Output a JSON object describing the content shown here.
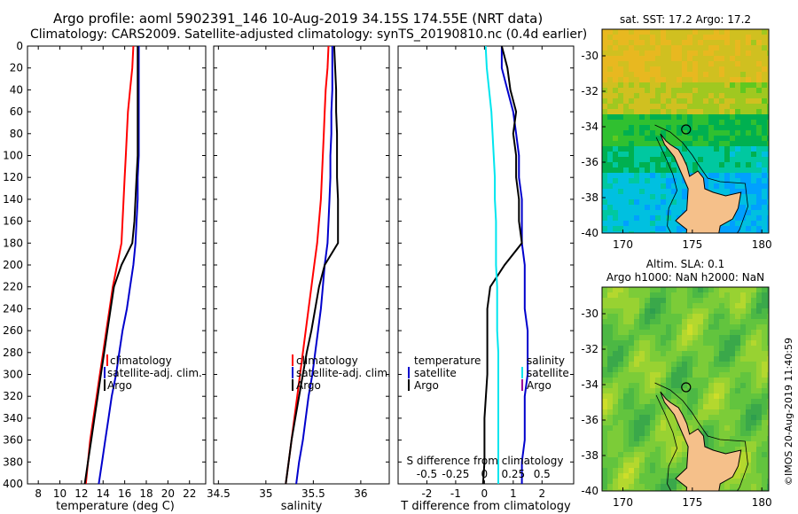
{
  "title_line1": "Argo profile: aoml 5902391_146 10-Aug-2019 34.15S 174.55E (NRT data)",
  "title_line2": "Climatology: CARS2009. Satellite-adjusted climatology: synTS_20190810.nc (0.4d earlier)",
  "credit": "©IMOS 20-Aug-2019 11:40:59",
  "colors": {
    "climatology": "#ff0000",
    "satellite": "#0000cc",
    "argo": "#000000",
    "s_satellite": "#00e5ee",
    "s_argo": "#990099"
  },
  "depth_axis": {
    "ticks": [
      0,
      20,
      40,
      60,
      80,
      100,
      120,
      140,
      160,
      180,
      200,
      220,
      240,
      260,
      280,
      300,
      320,
      340,
      360,
      380,
      400
    ],
    "ylim": [
      0,
      400
    ]
  },
  "chart_data": [
    {
      "id": "temperature",
      "type": "line",
      "xlabel": "temperature (deg C)",
      "xlim": [
        7,
        23.5
      ],
      "ylim": [
        0,
        400
      ],
      "xticks": [
        8,
        10,
        12,
        14,
        16,
        18,
        20,
        22
      ],
      "legend": [
        "climatology",
        "satellite-adj. clim.",
        "Argo"
      ],
      "series": [
        {
          "name": "climatology",
          "color": "#ff0000",
          "depth": [
            0,
            20,
            40,
            60,
            80,
            100,
            120,
            140,
            160,
            180,
            200,
            220,
            240,
            260,
            280,
            300,
            320,
            340,
            360,
            380,
            400
          ],
          "values": [
            16.8,
            16.7,
            16.5,
            16.3,
            16.2,
            16.1,
            16.0,
            15.9,
            15.8,
            15.7,
            15.3,
            14.9,
            14.6,
            14.3,
            14.0,
            13.7,
            13.4,
            13.1,
            12.8,
            12.6,
            12.4
          ]
        },
        {
          "name": "satellite-adj. clim.",
          "color": "#0000cc",
          "depth": [
            0,
            20,
            40,
            60,
            80,
            100,
            120,
            140,
            160,
            180,
            200,
            220,
            240,
            260,
            280,
            300,
            320,
            340,
            360,
            380,
            400
          ],
          "values": [
            17.3,
            17.3,
            17.3,
            17.3,
            17.3,
            17.3,
            17.2,
            17.2,
            17.1,
            17.0,
            16.8,
            16.5,
            16.2,
            15.8,
            15.5,
            15.2,
            14.8,
            14.5,
            14.2,
            13.9,
            13.6
          ]
        },
        {
          "name": "Argo",
          "color": "#000000",
          "depth": [
            0,
            20,
            40,
            60,
            80,
            100,
            120,
            140,
            160,
            180,
            200,
            220,
            240,
            260,
            280,
            300,
            320,
            340,
            360,
            380,
            400
          ],
          "values": [
            17.2,
            17.2,
            17.2,
            17.2,
            17.2,
            17.2,
            17.1,
            17.0,
            16.9,
            16.7,
            15.7,
            15.0,
            14.7,
            14.4,
            14.1,
            13.8,
            13.5,
            13.2,
            12.9,
            12.6,
            12.3
          ]
        }
      ]
    },
    {
      "id": "salinity",
      "type": "line",
      "xlabel": "salinity",
      "xlim": [
        34.45,
        36.3
      ],
      "ylim": [
        0,
        400
      ],
      "xticks": [
        34.5,
        35,
        35.5,
        36
      ],
      "xticklabels": [
        "34.5",
        "35",
        "35.5",
        "36"
      ],
      "legend": [
        "climatology",
        "satellite-adj. clim.",
        "Argo"
      ],
      "series": [
        {
          "name": "climatology",
          "color": "#ff0000",
          "depth": [
            0,
            20,
            40,
            60,
            80,
            100,
            120,
            140,
            160,
            180,
            200,
            220,
            240,
            260,
            280,
            300,
            320,
            340,
            360,
            380,
            400
          ],
          "values": [
            35.66,
            35.65,
            35.63,
            35.62,
            35.61,
            35.6,
            35.59,
            35.58,
            35.56,
            35.54,
            35.51,
            35.48,
            35.45,
            35.42,
            35.39,
            35.36,
            35.33,
            35.3,
            35.27,
            35.24,
            35.21
          ]
        },
        {
          "name": "satellite-adj. clim.",
          "color": "#0000cc",
          "depth": [
            0,
            20,
            40,
            60,
            80,
            100,
            120,
            140,
            160,
            180,
            200,
            220,
            240,
            260,
            280,
            300,
            320,
            340,
            360,
            380,
            400
          ],
          "values": [
            35.7,
            35.7,
            35.7,
            35.69,
            35.69,
            35.68,
            35.68,
            35.67,
            35.66,
            35.65,
            35.62,
            35.6,
            35.58,
            35.55,
            35.52,
            35.49,
            35.45,
            35.42,
            35.39,
            35.35,
            35.32
          ]
        },
        {
          "name": "Argo",
          "color": "#000000",
          "depth": [
            0,
            20,
            40,
            60,
            80,
            100,
            120,
            140,
            160,
            180,
            200,
            220,
            240,
            260,
            280,
            300,
            320,
            340,
            360,
            380,
            400
          ],
          "values": [
            35.72,
            35.73,
            35.74,
            35.74,
            35.75,
            35.75,
            35.75,
            35.76,
            35.76,
            35.76,
            35.62,
            35.56,
            35.52,
            35.48,
            35.43,
            35.39,
            35.35,
            35.31,
            35.27,
            35.24,
            35.21
          ]
        }
      ]
    },
    {
      "id": "difference",
      "type": "line",
      "xlabel": "T difference from climatology",
      "xlabel2": "S difference from climatology",
      "xlim": [
        -3,
        3.1
      ],
      "ylim": [
        0,
        400
      ],
      "xticks": [
        -2,
        -1,
        0,
        1,
        2
      ],
      "xticks_s": [
        -0.5,
        -0.25,
        0,
        0.25,
        0.5
      ],
      "xticklabels_s": [
        "-0.5",
        "-0.25",
        "0",
        "0.25",
        "0.5"
      ],
      "legend_t": [
        "temperature",
        "satellite",
        "Argo"
      ],
      "legend_s": [
        "salinity",
        "satellite",
        "Argo"
      ],
      "series": [
        {
          "name": "T satellite",
          "color": "#0000cc",
          "depth": [
            0,
            20,
            40,
            60,
            80,
            100,
            120,
            140,
            160,
            180,
            200,
            220,
            240,
            260,
            280,
            300,
            320,
            340,
            360,
            380,
            400
          ],
          "values": [
            0.6,
            0.6,
            0.8,
            1.0,
            1.1,
            1.2,
            1.2,
            1.3,
            1.3,
            1.3,
            1.4,
            1.4,
            1.4,
            1.5,
            1.5,
            1.5,
            1.4,
            1.4,
            1.4,
            1.3,
            1.3
          ]
        },
        {
          "name": "T Argo",
          "color": "#000000",
          "depth": [
            0,
            20,
            40,
            60,
            80,
            100,
            120,
            140,
            160,
            180,
            200,
            220,
            240,
            260,
            280,
            300,
            320,
            340,
            360,
            380,
            400
          ],
          "values": [
            0.6,
            0.8,
            0.9,
            1.1,
            1.0,
            1.1,
            1.1,
            1.2,
            1.2,
            1.3,
            0.7,
            0.2,
            0.1,
            0.1,
            0.1,
            0.1,
            0.05,
            0.0,
            0.0,
            0.0,
            -0.05
          ]
        },
        {
          "name": "S satellite",
          "color": "#00e5ee",
          "depth": [
            0,
            20,
            40,
            60,
            80,
            100,
            120,
            140,
            160,
            180,
            200,
            220,
            240,
            260,
            280,
            300,
            320,
            340,
            360,
            380,
            400
          ],
          "values": [
            0.01,
            0.02,
            0.04,
            0.06,
            0.07,
            0.08,
            0.09,
            0.09,
            0.1,
            0.1,
            0.1,
            0.11,
            0.11,
            0.11,
            0.12,
            0.12,
            0.12,
            0.12,
            0.12,
            0.12,
            0.12
          ]
        }
      ]
    },
    {
      "id": "map_sst",
      "type": "heatmap",
      "title": "sat. SST: 17.2 Argo: 17.2",
      "xlim": [
        168.5,
        180.5
      ],
      "ylim": [
        -40,
        -28.5
      ],
      "xticks": [
        170,
        175,
        180
      ],
      "yticks": [
        -30,
        -32,
        -34,
        -36,
        -38,
        -40
      ],
      "marker": {
        "lon": 174.55,
        "lat": -34.15
      }
    },
    {
      "id": "map_sla",
      "type": "heatmap",
      "title_line1": "Altim. SLA: 0.1",
      "title_line2": "Argo h1000: NaN h2000: NaN",
      "xlim": [
        168.5,
        180.5
      ],
      "ylim": [
        -40,
        -28.5
      ],
      "xticks": [
        170,
        175,
        180
      ],
      "yticks": [
        -30,
        -32,
        -34,
        -36,
        -38,
        -40
      ],
      "marker": {
        "lon": 174.55,
        "lat": -34.15
      }
    }
  ]
}
